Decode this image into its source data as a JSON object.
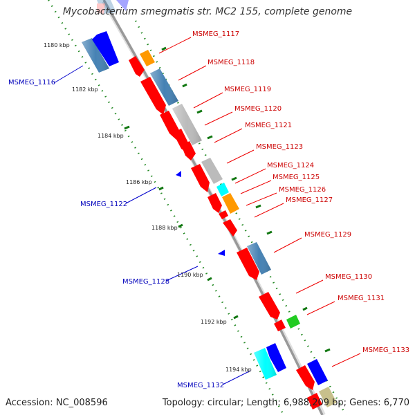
{
  "title": "Mycobacterium smegmatis str. MC2 155, complete genome",
  "accession": "Accession: NC_008596",
  "topology": "Topology: circular; Length: 6,988,209 bp; Genes: 6,770",
  "colors": {
    "cds_forward": "#ff0000",
    "cds_reverse": "#0000ff",
    "steel": "#4682b4",
    "gray": "#bbbbbb",
    "orange": "#ff9900",
    "cyan": "#00ffff",
    "green": "#22cc22",
    "gc_dots": "#228822",
    "forward_label": "#cc0000",
    "reverse_label": "#0000bb"
  },
  "ticks": [
    "1180 kbp",
    "1182 kbp",
    "1184 kbp",
    "1186 kbp",
    "1188 kbp",
    "1190 kbp",
    "1192 kbp",
    "1194 kbp"
  ],
  "forward_labels": [
    "MSMEG_1117",
    "MSMEG_1118",
    "MSMEG_1119",
    "MSMEG_1120",
    "MSMEG_1121",
    "MSMEG_1123",
    "MSMEG_1124",
    "MSMEG_1125",
    "MSMEG_1126",
    "MSMEG_1127",
    "MSMEG_1129",
    "MSMEG_1130",
    "MSMEG_1131",
    "MSMEG_1133"
  ],
  "reverse_labels": [
    "MSMEG_1116",
    "MSMEG_1122",
    "MSMEG_1128",
    "MSMEG_1132"
  ]
}
